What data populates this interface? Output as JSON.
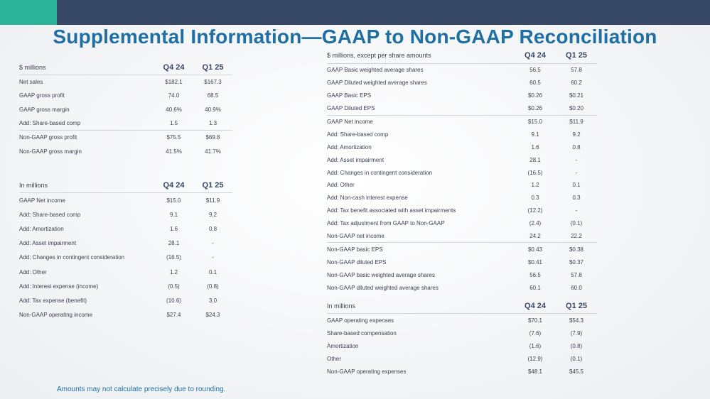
{
  "title": "Supplemental Information—GAAP to Non-GAAP Reconciliation",
  "gross": {
    "header": {
      "label": "$ millions",
      "c1": "Q4 24",
      "c2": "Q1 25"
    },
    "rows": [
      {
        "label": "Net sales",
        "c1": "$182.1",
        "c2": "$167.3"
      },
      {
        "label": "GAAP gross profit",
        "c1": "74.0",
        "c2": "68.5"
      },
      {
        "label": "GAAP gross margin",
        "c1": "40.6%",
        "c2": "40.9%"
      },
      {
        "label": "Add: Share-based comp",
        "c1": "1.5",
        "c2": "1.3"
      },
      {
        "label": "Non-GAAP gross profit",
        "c1": "$75.5",
        "c2": "$69.8"
      },
      {
        "label": "Non-GAAP gross margin",
        "c1": "41.5%",
        "c2": "41.7%"
      }
    ]
  },
  "operating": {
    "header": {
      "label": "In millions",
      "c1": "Q4 24",
      "c2": "Q1 25"
    },
    "rows": [
      {
        "label": "GAAP Net income",
        "c1": "$15.0",
        "c2": "$11.9"
      },
      {
        "label": "Add: Share-based comp",
        "c1": "9.1",
        "c2": "9.2"
      },
      {
        "label": "Add: Amortization",
        "c1": "1.6",
        "c2": "0.8"
      },
      {
        "label": "Add: Asset impairment",
        "c1": "28.1",
        "c2": "-"
      },
      {
        "label": "Add: Changes in contingent consideration",
        "c1": "(16.5)",
        "c2": "-"
      },
      {
        "label": "Add: Other",
        "c1": "1.2",
        "c2": "0.1"
      },
      {
        "label": "Add: Interest expense (income)",
        "c1": "(0.5)",
        "c2": "(0.8)"
      },
      {
        "label": "Add: Tax expense (benefit)",
        "c1": "(10.6)",
        "c2": "3.0"
      },
      {
        "label": "Non-GAAP operating income",
        "c1": "$27.4",
        "c2": "$24.3"
      }
    ]
  },
  "eps": {
    "header": {
      "label": "$ millions, except per share amounts",
      "c1": "Q4 24",
      "c2": "Q1 25"
    },
    "rows": [
      {
        "label": "GAAP Basic weighted average shares",
        "c1": "56.5",
        "c2": "57.8"
      },
      {
        "label": "GAAP Diluted weighted average shares",
        "c1": "60.5",
        "c2": "60.2"
      },
      {
        "label": "GAAP Basic EPS",
        "c1": "$0.26",
        "c2": "$0.21"
      },
      {
        "label": "GAAP Diluted EPS",
        "c1": "$0.26",
        "c2": "$0.20"
      },
      {
        "label": "GAAP Net income",
        "c1": "$15.0",
        "c2": "$11.9"
      },
      {
        "label": "Add: Share-based comp",
        "c1": "9.1",
        "c2": "9.2"
      },
      {
        "label": "Add: Amortization",
        "c1": "1.6",
        "c2": "0.8"
      },
      {
        "label": "Add: Asset impairment",
        "c1": "28.1",
        "c2": "-"
      },
      {
        "label": "Add: Changes in contingent consideration",
        "c1": "(16.5)",
        "c2": "-"
      },
      {
        "label": "Add: Other",
        "c1": "1.2",
        "c2": "0.1"
      },
      {
        "label": "Add: Non-cash interest expense",
        "c1": "0.3",
        "c2": "0.3"
      },
      {
        "label": "Add: Tax benefit associated with asset impairments",
        "c1": "(12.2)",
        "c2": "-"
      },
      {
        "label": "Add: Tax adjustment from GAAP to Non-GAAP",
        "c1": "(2.4)",
        "c2": "(0.1)"
      },
      {
        "label": "Non-GAAP net income",
        "c1": "24.2",
        "c2": "22.2"
      },
      {
        "label": "Non-GAAP basic EPS",
        "c1": "$0.43",
        "c2": "$0.38"
      },
      {
        "label": "Non-GAAP diluted EPS",
        "c1": "$0.41",
        "c2": "$0.37"
      },
      {
        "label": "Non-GAAP basic weighted average shares",
        "c1": "56.5",
        "c2": "57.8"
      },
      {
        "label": "Non-GAAP diluted weighted average shares",
        "c1": "60.1",
        "c2": "60.0"
      }
    ]
  },
  "opex": {
    "header": {
      "label": "In millions",
      "c1": "Q4 24",
      "c2": "Q1 25"
    },
    "rows": [
      {
        "label": "GAAP operating expenses",
        "c1": "$70.1",
        "c2": "$54.3"
      },
      {
        "label": "Share-based compensation",
        "c1": "(7.6)",
        "c2": "(7.9)"
      },
      {
        "label": "Amortization",
        "c1": "(1.6)",
        "c2": "(0.8)"
      },
      {
        "label": "Other",
        "c1": "(12.9)",
        "c2": "(0.1)"
      },
      {
        "label": "Non-GAAP operating expenses",
        "c1": "$48.1",
        "c2": "$45.5"
      }
    ]
  },
  "footnote": "Amounts may not calculate precisely due to rounding."
}
